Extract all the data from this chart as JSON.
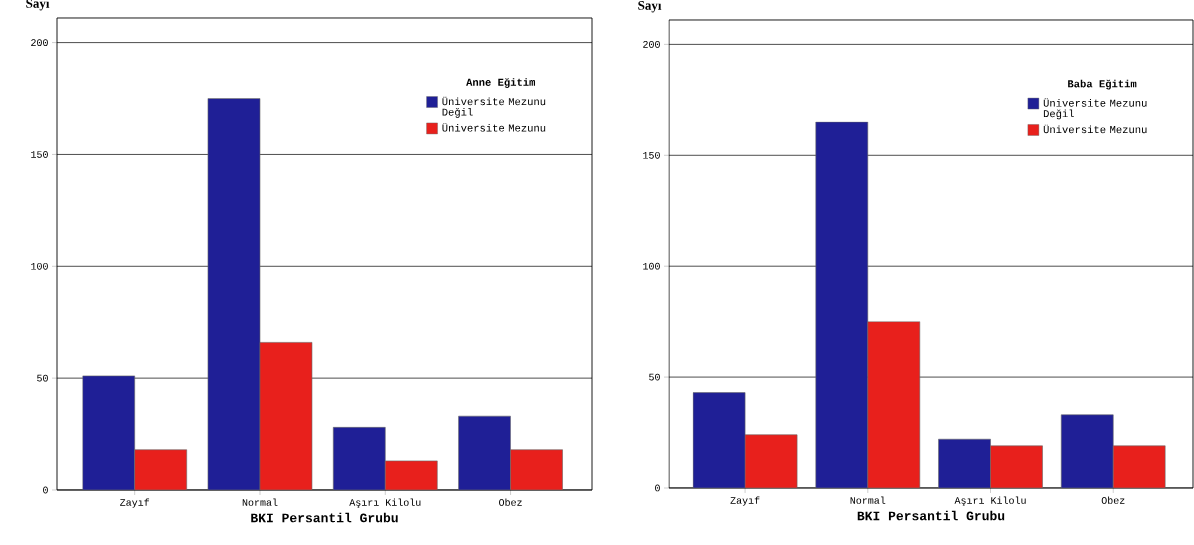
{
  "chart_data": [
    {
      "type": "bar",
      "xlabel": "BKI Persantil Grubu",
      "ylabel": "Sayı",
      "legend_title": "Anne Eğitim",
      "categories": [
        "Zayıf",
        "Normal",
        "Aşırı Kilolu",
        "Obez"
      ],
      "series": [
        {
          "name": "Üniversite Mezunu Değil",
          "color": "#1f1f96",
          "values": [
            51,
            175,
            28,
            33
          ]
        },
        {
          "name": "Üniversite Mezunu",
          "color": "#e8201c",
          "values": [
            18,
            66,
            13,
            18
          ]
        }
      ],
      "ylim": [
        0,
        211
      ],
      "yticks": [
        0,
        50,
        100,
        150,
        200
      ],
      "grid": "y",
      "legend": "top right"
    },
    {
      "type": "bar",
      "xlabel": "BKI Persantil Grubu",
      "ylabel": "Sayı",
      "legend_title": "Baba Eğitim",
      "categories": [
        "Zayıf",
        "Normal",
        "Aşırı Kilolu",
        "Obez"
      ],
      "series": [
        {
          "name": "Üniversite Mezunu Değil",
          "color": "#1f1f96",
          "values": [
            43,
            165,
            22,
            33
          ]
        },
        {
          "name": "Üniversite Mezunu",
          "color": "#e8201c",
          "values": [
            24,
            75,
            19,
            19
          ]
        }
      ],
      "ylim": [
        0,
        211
      ],
      "yticks": [
        0,
        50,
        100,
        150,
        200
      ],
      "grid": "y",
      "legend": "top right"
    }
  ]
}
